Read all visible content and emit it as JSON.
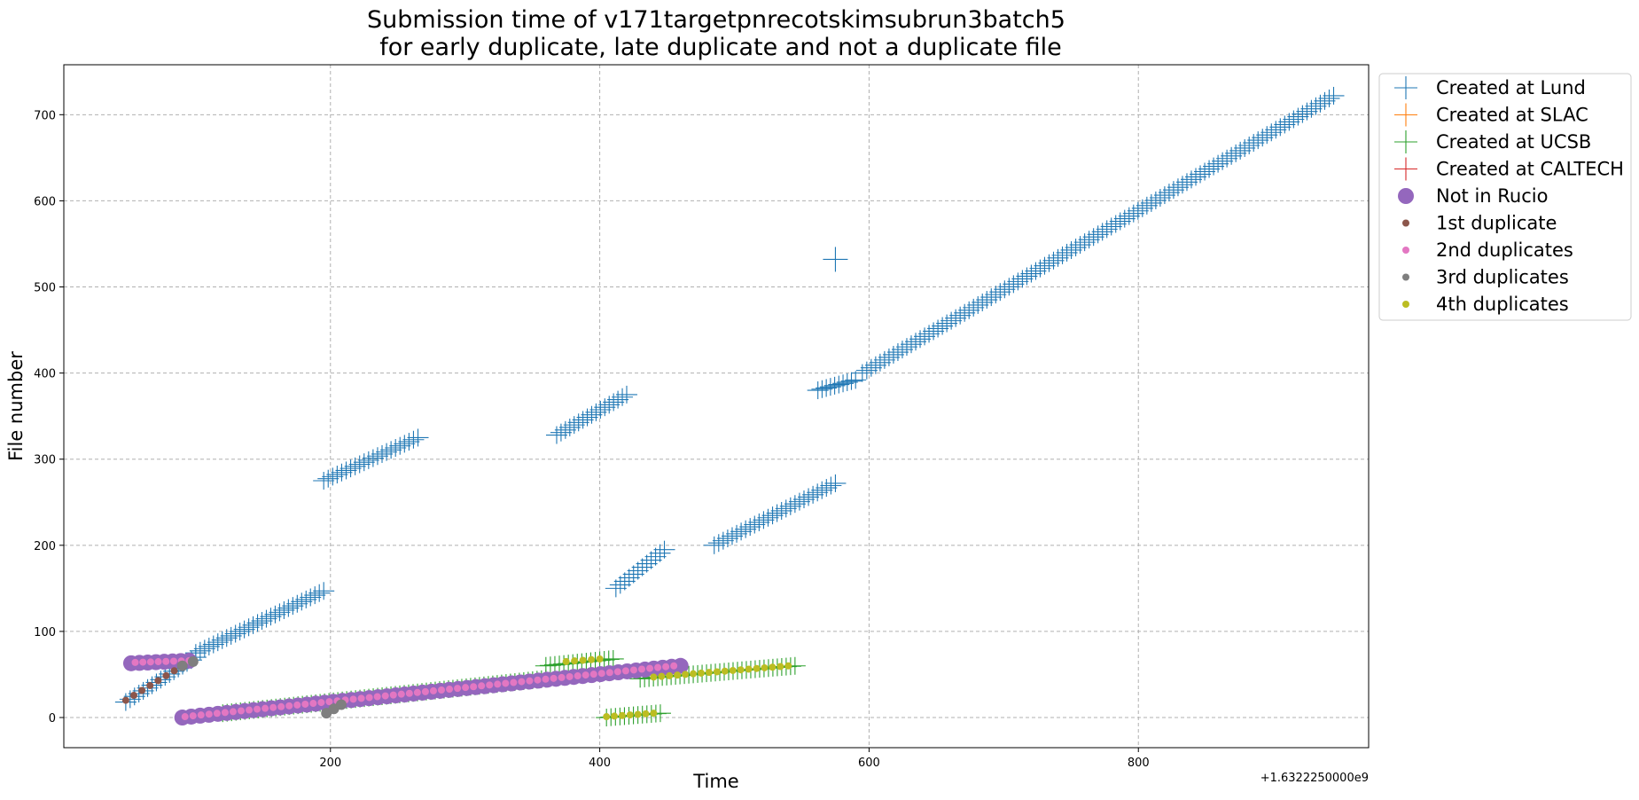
{
  "chart_data": {
    "type": "scatter",
    "title": [
      "Submission time of v171targetpnrecotskimsubrun3batch5",
      "for early duplicate, late duplicate and not a duplicate file"
    ],
    "xlabel": "Time",
    "ylabel": "File number",
    "x_offset_label": "+1.6322250000e9",
    "xlim": [
      2,
      971
    ],
    "ylim": [
      -35,
      758
    ],
    "x_ticks": [
      200,
      400,
      600,
      800
    ],
    "y_ticks": [
      0,
      100,
      200,
      300,
      400,
      500,
      600,
      700
    ],
    "grid": true,
    "legend_position": "outside top-right",
    "colors": {
      "lund": "#1f77b4",
      "slac": "#ff7f0e",
      "ucsb": "#2ca02c",
      "caltech": "#d62728",
      "not_in_rucio": "#9467bd",
      "first_dup": "#8c564b",
      "second_dup": "#e377c2",
      "third_dup": "#7f7f7f",
      "fourth_dup": "#bcbd22",
      "grid": "#b0b0b0"
    },
    "legend": [
      {
        "label": "Created at Lund",
        "marker": "plus",
        "color": "#1f77b4"
      },
      {
        "label": "Created at SLAC",
        "marker": "plus",
        "color": "#ff7f0e"
      },
      {
        "label": "Created at UCSB",
        "marker": "plus",
        "color": "#2ca02c"
      },
      {
        "label": "Created at CALTECH",
        "marker": "plus",
        "color": "#d62728"
      },
      {
        "label": "Not in Rucio",
        "marker": "circle-large",
        "color": "#9467bd"
      },
      {
        "label": "1st duplicate",
        "marker": "circle-small",
        "color": "#8c564b"
      },
      {
        "label": "2nd duplicates",
        "marker": "circle-small",
        "color": "#e377c2"
      },
      {
        "label": "3rd duplicates",
        "marker": "circle-small",
        "color": "#7f7f7f"
      },
      {
        "label": "4th duplicates",
        "marker": "circle-small",
        "color": "#bcbd22"
      }
    ],
    "series": [
      {
        "name": "Created at Lund",
        "marker": "plus",
        "color": "#1f77b4",
        "segments": [
          {
            "x": [
              48,
              100
            ],
            "y": [
              18,
              70
            ]
          },
          {
            "x": [
              100,
              195
            ],
            "y": [
              75,
              147
            ]
          },
          {
            "x": [
              195,
              265
            ],
            "y": [
              275,
              325
            ]
          },
          {
            "x": [
              368,
              420
            ],
            "y": [
              328,
              375
            ]
          },
          {
            "x": [
              412,
              448
            ],
            "y": [
              150,
              195
            ]
          },
          {
            "x": [
              485,
              575
            ],
            "y": [
              200,
              272
            ]
          },
          {
            "x": [
              575,
              575
            ],
            "y": [
              532,
              532
            ]
          },
          {
            "x": [
              562,
              590
            ],
            "y": [
              380,
              392
            ]
          },
          {
            "x": [
              595,
              945
            ],
            "y": [
              400,
              722
            ]
          }
        ]
      },
      {
        "name": "Created at UCSB",
        "marker": "plus",
        "color": "#2ca02c",
        "segments": [
          {
            "x": [
              120,
              360
            ],
            "y": [
              5,
              45
            ]
          },
          {
            "x": [
              360,
              410
            ],
            "y": [
              60,
              68
            ]
          },
          {
            "x": [
              430,
              545
            ],
            "y": [
              45,
              60
            ]
          },
          {
            "x": [
              405,
              445
            ],
            "y": [
              0,
              5
            ]
          }
        ]
      },
      {
        "name": "Not in Rucio",
        "marker": "circle-large",
        "color": "#9467bd",
        "segments": [
          {
            "x": [
              52,
              95
            ],
            "y": [
              63,
              66
            ]
          },
          {
            "x": [
              90,
              460
            ],
            "y": [
              0,
              60
            ]
          }
        ]
      },
      {
        "name": "1st duplicate",
        "marker": "circle-small",
        "color": "#8c564b",
        "segments": [
          {
            "x": [
              48,
              90
            ],
            "y": [
              20,
              60
            ]
          }
        ]
      },
      {
        "name": "2nd duplicates",
        "marker": "circle-small",
        "color": "#e377c2",
        "segments": [
          {
            "x": [
              55,
              95
            ],
            "y": [
              64,
              66
            ]
          },
          {
            "x": [
              92,
              455
            ],
            "y": [
              1,
              60
            ]
          }
        ]
      },
      {
        "name": "3rd duplicates",
        "marker": "circle-small",
        "color": "#7f7f7f",
        "segments": [
          {
            "x": [
              197,
              208
            ],
            "y": [
              5,
              15
            ]
          },
          {
            "x": [
              90,
              98
            ],
            "y": [
              60,
              65
            ]
          }
        ]
      },
      {
        "name": "4th duplicates",
        "marker": "circle-small",
        "color": "#bcbd22",
        "segments": [
          {
            "x": [
              375,
              400
            ],
            "y": [
              65,
              68
            ]
          },
          {
            "x": [
              405,
              440
            ],
            "y": [
              1,
              5
            ]
          },
          {
            "x": [
              440,
              540
            ],
            "y": [
              47,
              60
            ]
          }
        ]
      }
    ]
  }
}
